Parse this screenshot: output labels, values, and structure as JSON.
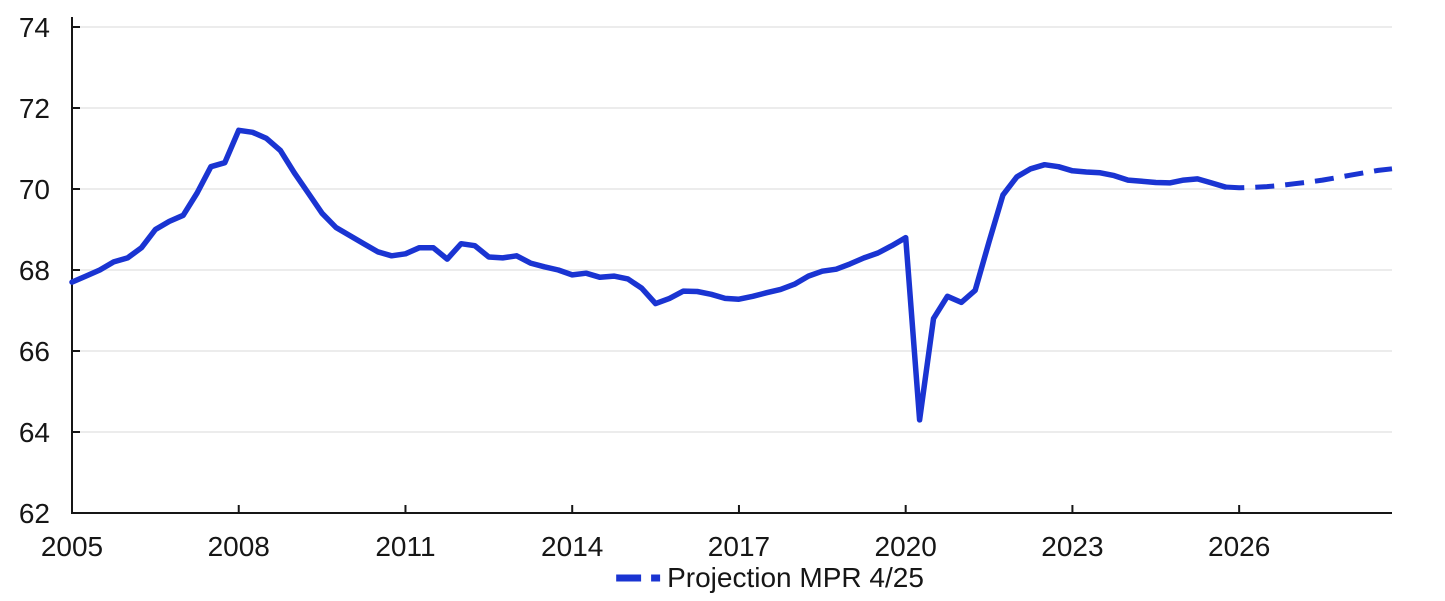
{
  "chart_data": {
    "type": "line",
    "title": "",
    "xlabel": "",
    "ylabel": "",
    "xlim": [
      2005,
      2028.75
    ],
    "ylim": [
      62,
      74
    ],
    "y_ticks": [
      62,
      64,
      66,
      68,
      70,
      72,
      74
    ],
    "x_ticks": [
      2005,
      2008,
      2011,
      2014,
      2017,
      2020,
      2023,
      2026
    ],
    "grid": "horizontal-only",
    "legend_position": "bottom-center",
    "series": [
      {
        "label": "",
        "style": "solid",
        "color": "#1a34d2",
        "start": 2005.0,
        "step": 0.25,
        "values": [
          67.7,
          67.85,
          68.0,
          68.2,
          68.3,
          68.55,
          69.0,
          69.2,
          69.35,
          69.9,
          70.55,
          70.65,
          71.45,
          71.4,
          71.25,
          70.95,
          70.4,
          69.9,
          69.4,
          69.05,
          68.85,
          68.65,
          68.45,
          68.35,
          68.4,
          68.55,
          68.55,
          68.27,
          68.65,
          68.6,
          68.32,
          68.3,
          68.35,
          68.17,
          68.08,
          68.0,
          67.88,
          67.92,
          67.82,
          67.85,
          67.78,
          67.55,
          67.17,
          67.3,
          67.48,
          67.47,
          67.4,
          67.3,
          67.28,
          67.35,
          67.44,
          67.52,
          67.65,
          67.85,
          67.97,
          68.02,
          68.15,
          68.3,
          68.42,
          68.6,
          68.8,
          64.3,
          66.8,
          67.35,
          67.2,
          67.5,
          68.7,
          69.85,
          70.3,
          70.5,
          70.6,
          70.55,
          70.45,
          70.42,
          70.4,
          70.33,
          70.22,
          70.19,
          70.16,
          70.15,
          70.22,
          70.25,
          70.15,
          70.05
        ]
      },
      {
        "label": "Projection MPR 4/25",
        "style": "dashed",
        "color": "#1a34d2",
        "start": 2025.75,
        "step": 0.25,
        "values": [
          70.05,
          70.03,
          70.04,
          70.06,
          70.09,
          70.13,
          70.17,
          70.22,
          70.28,
          70.34,
          70.4,
          70.46,
          70.5
        ]
      }
    ]
  },
  "colors": {
    "line": "#1a34d2",
    "axis": "#161616",
    "grid": "#e5e5e5",
    "text": "#161616",
    "background": "#ffffff"
  }
}
